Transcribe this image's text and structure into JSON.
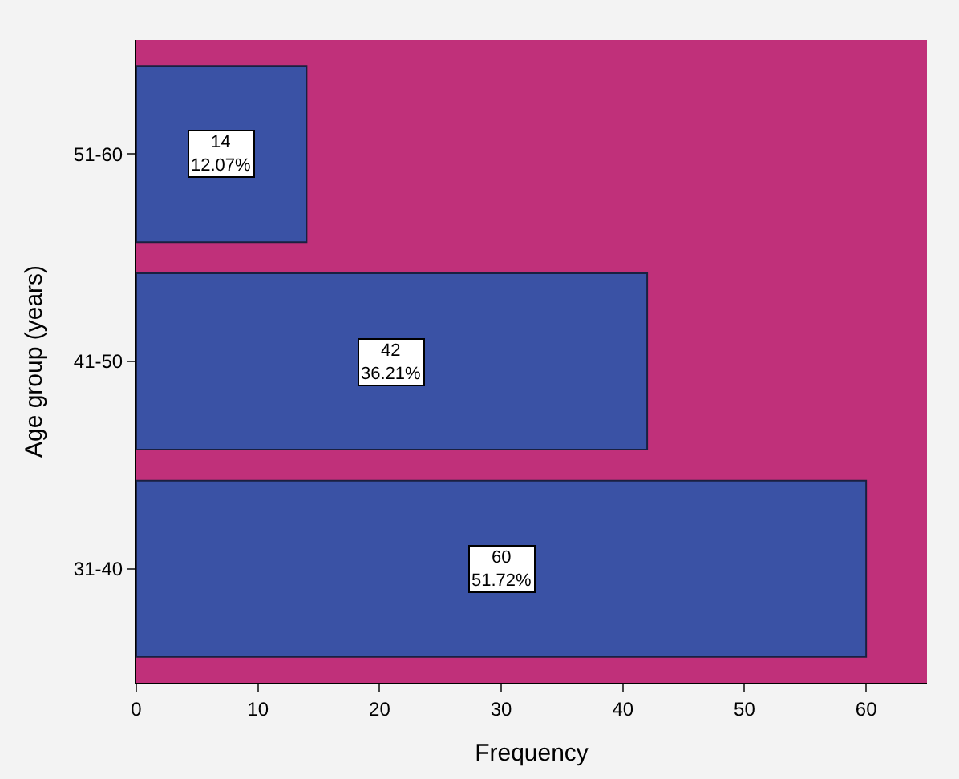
{
  "chart_data": {
    "type": "bar",
    "orientation": "horizontal",
    "xlabel": "Frequency",
    "ylabel": "Age group (years)",
    "categories": [
      "51-60",
      "41-50",
      "31-40"
    ],
    "values": [
      14,
      42,
      60
    ],
    "color": "#3a52a5",
    "value_labels": [
      "14\n12.07%",
      "42\n36.21%",
      "60\n51.72%"
    ],
    "xlim": [
      0,
      65
    ],
    "xticks": [
      0,
      10,
      20,
      30,
      40,
      50,
      60
    ],
    "grid": false
  }
}
